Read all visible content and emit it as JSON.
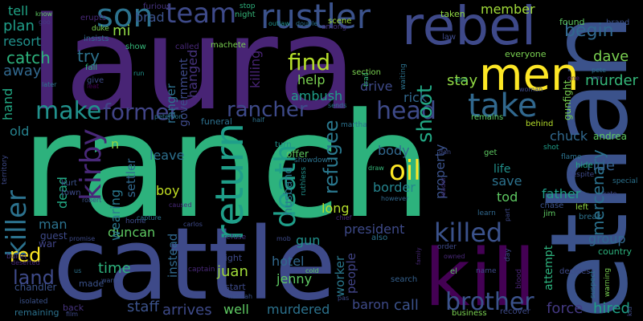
{
  "palette": {
    "dark_purple": "#440154",
    "purple": "#46337e",
    "blue": "#365c8d",
    "teal": "#277f8e",
    "green_teal": "#1fa187",
    "green": "#4ac16d",
    "light_green": "#a0da39",
    "yellow": "#fde725"
  },
  "words": [
    {
      "text": "ranch",
      "color": "#2db27d"
    },
    {
      "text": "laura",
      "color": "#482475"
    },
    {
      "text": "cattle",
      "color": "#3e4a89"
    },
    {
      "text": "ethan",
      "color": "#3b528b"
    },
    {
      "text": "kill",
      "color": "#440154"
    },
    {
      "text": "rebel",
      "color": "#3e4989"
    },
    {
      "text": "men",
      "color": "#fde725"
    },
    {
      "text": "son",
      "color": "#2c728e"
    },
    {
      "text": "team",
      "color": "#3e4a89"
    },
    {
      "text": "rustler",
      "color": "#3b528b"
    },
    {
      "text": "take",
      "color": "#31688e"
    },
    {
      "text": "return",
      "color": "#1f9e89"
    },
    {
      "text": "oil",
      "color": "#fde725"
    },
    {
      "text": "kirby",
      "color": "#482878"
    },
    {
      "text": "rancher",
      "color": "#3e4a89"
    },
    {
      "text": "former",
      "color": "#414487"
    },
    {
      "text": "make",
      "color": "#21918c"
    },
    {
      "text": "death",
      "color": "#1f9e89"
    },
    {
      "text": "killer",
      "color": "#2c728e"
    },
    {
      "text": "killed",
      "color": "#3b528b"
    },
    {
      "text": "head",
      "color": "#3e4a89"
    },
    {
      "text": "brother",
      "color": "#3b528b"
    },
    {
      "text": "find",
      "color": "#b5de2b"
    },
    {
      "text": "shoot",
      "color": "#22a884"
    },
    {
      "text": "refugee",
      "color": "#2a788e"
    },
    {
      "text": "land",
      "color": "#3e4a89"
    },
    {
      "text": "red",
      "color": "#fde725"
    },
    {
      "text": "mercenary",
      "color": "#2c728e"
    },
    {
      "text": "begin",
      "color": "#31688e"
    },
    {
      "text": "murder",
      "color": "#35b779"
    },
    {
      "text": "dave",
      "color": "#7ad151"
    },
    {
      "text": "member",
      "color": "#a0da39"
    },
    {
      "text": "stay",
      "color": "#90d743"
    },
    {
      "text": "try",
      "color": "#2c728e"
    },
    {
      "text": "catch",
      "color": "#2db27d"
    },
    {
      "text": "away",
      "color": "#31688e"
    },
    {
      "text": "plan",
      "color": "#1f9e89"
    },
    {
      "text": "resort",
      "color": "#21918c"
    },
    {
      "text": "tell",
      "color": "#20a486"
    },
    {
      "text": "brad",
      "color": "#3b528b"
    },
    {
      "text": "mi",
      "color": "#8fd744"
    },
    {
      "text": "help",
      "color": "#7ad151"
    },
    {
      "text": "ambush",
      "color": "#1f9e89"
    },
    {
      "text": "killing",
      "color": "#482475"
    },
    {
      "text": "hanged",
      "color": "#46337e"
    },
    {
      "text": "ranger",
      "color": "#2d708e"
    },
    {
      "text": "government",
      "color": "#3e4a89"
    },
    {
      "text": "property",
      "color": "#3b528b"
    },
    {
      "text": "chuck",
      "color": "#31688e"
    },
    {
      "text": "andrea",
      "color": "#5ec962"
    },
    {
      "text": "ride",
      "color": "#35608d"
    },
    {
      "text": "gunfight",
      "color": "#7ad151"
    },
    {
      "text": "body",
      "color": "#31688e"
    },
    {
      "text": "border",
      "color": "#25848e"
    },
    {
      "text": "save",
      "color": "#2c728e"
    },
    {
      "text": "life",
      "color": "#21918c"
    },
    {
      "text": "tod",
      "color": "#5ec962"
    },
    {
      "text": "father",
      "color": "#1f9e89"
    },
    {
      "text": "group",
      "color": "#31688e"
    },
    {
      "text": "hired",
      "color": "#1fa187"
    },
    {
      "text": "force",
      "color": "#443983"
    },
    {
      "text": "attempt",
      "color": "#2db27d"
    },
    {
      "text": "call",
      "color": "#3b528b"
    },
    {
      "text": "baron",
      "color": "#3e4a89"
    },
    {
      "text": "people",
      "color": "#414487"
    },
    {
      "text": "worker",
      "color": "#2a788e"
    },
    {
      "text": "president",
      "color": "#3e4a89"
    },
    {
      "text": "long",
      "color": "#b5de2b"
    },
    {
      "text": "murdered",
      "color": "#2c728e"
    },
    {
      "text": "well",
      "color": "#5ec962"
    },
    {
      "text": "arrives",
      "color": "#3e4a89"
    },
    {
      "text": "staff",
      "color": "#3b528b"
    },
    {
      "text": "time",
      "color": "#2db27d"
    },
    {
      "text": "juan",
      "color": "#a0da39"
    },
    {
      "text": "jenny",
      "color": "#5ec962"
    },
    {
      "text": "hotel",
      "color": "#31688e"
    },
    {
      "text": "husband",
      "color": "#2a788e"
    },
    {
      "text": "gun",
      "color": "#21918c"
    },
    {
      "text": "duncan",
      "color": "#5ec962"
    },
    {
      "text": "boy",
      "color": "#c2df23"
    },
    {
      "text": "leave",
      "color": "#2d708e"
    },
    {
      "text": "settler",
      "color": "#31688e"
    },
    {
      "text": "dead",
      "color": "#22a884"
    },
    {
      "text": "wearing",
      "color": "#2a788e"
    },
    {
      "text": "instead",
      "color": "#31688e"
    },
    {
      "text": "hand",
      "color": "#22a884"
    },
    {
      "text": "old",
      "color": "#26828e"
    },
    {
      "text": "man",
      "color": "#2c728e"
    },
    {
      "text": "guest",
      "color": "#3e4a89"
    },
    {
      "text": "war",
      "color": "#414487"
    },
    {
      "text": "chandler",
      "color": "#3b528b"
    },
    {
      "text": "back",
      "color": "#46337e"
    },
    {
      "text": "remaining",
      "color": "#2c728e"
    },
    {
      "text": "made",
      "color": "#3b528b"
    },
    {
      "text": "fight",
      "color": "#3e4a89"
    },
    {
      "text": "start",
      "color": "#3e4a89"
    },
    {
      "text": "n",
      "color": "#8fd744"
    },
    {
      "text": "turn",
      "color": "#21918c"
    },
    {
      "text": "funeral",
      "color": "#2d708e"
    },
    {
      "text": "offer",
      "color": "#5ec962"
    },
    {
      "text": "drive",
      "color": "#3e4a89"
    },
    {
      "text": "rick",
      "color": "#31688e"
    },
    {
      "text": "taken",
      "color": "#8fd744"
    },
    {
      "text": "everyone",
      "color": "#7ad151"
    },
    {
      "text": "section",
      "color": "#7ad151"
    },
    {
      "text": "show",
      "color": "#35b779"
    },
    {
      "text": "called",
      "color": "#482878"
    },
    {
      "text": "machete",
      "color": "#7ad151"
    },
    {
      "text": "stop",
      "color": "#2db27d"
    },
    {
      "text": "night",
      "color": "#35b779"
    },
    {
      "text": "scene",
      "color": "#a0da39"
    },
    {
      "text": "among",
      "color": "#46337e"
    },
    {
      "text": "outlaw",
      "color": "#21918c"
    },
    {
      "text": "double",
      "color": "#2c728e"
    },
    {
      "text": "erupts",
      "color": "#482878"
    },
    {
      "text": "duke",
      "color": "#7ad151"
    },
    {
      "text": "insists",
      "color": "#31688e"
    },
    {
      "text": "furious",
      "color": "#46337e"
    },
    {
      "text": "know",
      "color": "#5ec962"
    },
    {
      "text": "goo",
      "color": "#443983"
    },
    {
      "text": "fall",
      "color": "#2db27d"
    },
    {
      "text": "give",
      "color": "#3e4a89"
    },
    {
      "text": "leat",
      "color": "#440154"
    },
    {
      "text": "later",
      "color": "#2a788e"
    },
    {
      "text": "run",
      "color": "#21918c"
    },
    {
      "text": "peterson",
      "color": "#2c728e"
    },
    {
      "text": "half",
      "color": "#2c728e"
    },
    {
      "text": "martha",
      "color": "#2c728e"
    },
    {
      "text": "sends",
      "color": "#2a788e"
    },
    {
      "text": "remains",
      "color": "#5ec962"
    },
    {
      "text": "behind",
      "color": "#b5de2b"
    },
    {
      "text": "woman",
      "color": "#3e4a89"
    },
    {
      "text": "end",
      "color": "#35b779"
    },
    {
      "text": "waiting",
      "color": "#2c728e"
    },
    {
      "text": "trail",
      "color": "#35b779"
    },
    {
      "text": "showdown",
      "color": "#2c728e"
    },
    {
      "text": "law",
      "color": "#3e4a89"
    },
    {
      "text": "found",
      "color": "#5ec962"
    },
    {
      "text": "brand",
      "color": "#3b528b"
    },
    {
      "text": "pete",
      "color": "#2c728e"
    },
    {
      "text": "way",
      "color": "#3e4a89"
    },
    {
      "text": "one",
      "color": "#482475"
    },
    {
      "text": "shot",
      "color": "#1f9e89"
    },
    {
      "text": "flame",
      "color": "#2c728e"
    },
    {
      "text": "hide",
      "color": "#22a884"
    },
    {
      "text": "despite",
      "color": "#3e4a89"
    },
    {
      "text": "special",
      "color": "#2c728e"
    },
    {
      "text": "kate",
      "color": "#3e4a89"
    },
    {
      "text": "chase",
      "color": "#3b528b"
    },
    {
      "text": "jim",
      "color": "#5ec962"
    },
    {
      "text": "left",
      "color": "#8fd744"
    },
    {
      "text": "break",
      "color": "#2c728e"
    },
    {
      "text": "country",
      "color": "#2db27d"
    },
    {
      "text": "decides",
      "color": "#3e4a89"
    },
    {
      "text": "warning",
      "color": "#7ad151"
    },
    {
      "text": "suspect",
      "color": "#2c728e"
    },
    {
      "text": "recover",
      "color": "#3e4a89"
    },
    {
      "text": "business",
      "color": "#7ad151"
    },
    {
      "text": "pas",
      "color": "#3e4a89"
    },
    {
      "text": "search",
      "color": "#35608d"
    },
    {
      "text": "also",
      "color": "#2c728e"
    },
    {
      "text": "chief",
      "color": "#482878"
    },
    {
      "text": "mob",
      "color": "#3e4a89"
    },
    {
      "text": "refuse",
      "color": "#46337e"
    },
    {
      "text": "cold",
      "color": "#5ec962"
    },
    {
      "text": "hannah",
      "color": "#3b528b"
    },
    {
      "text": "captain",
      "color": "#482878"
    },
    {
      "text": "carlos",
      "color": "#3e4a89"
    },
    {
      "text": "home",
      "color": "#3e4a89"
    },
    {
      "text": "capture",
      "color": "#2c728e"
    },
    {
      "text": "caused",
      "color": "#482878"
    },
    {
      "text": "ruthless",
      "color": "#21918c"
    },
    {
      "text": "draw",
      "color": "#35b779"
    },
    {
      "text": "dan",
      "color": "#3e4a89"
    },
    {
      "text": "get",
      "color": "#5ec962"
    },
    {
      "text": "learn",
      "color": "#31688e"
    },
    {
      "text": "part",
      "color": "#3e4a89"
    },
    {
      "text": "leader",
      "color": "#46337e"
    },
    {
      "text": "however",
      "color": "#31688e"
    },
    {
      "text": "kurt",
      "color": "#3b528b"
    },
    {
      "text": "town",
      "color": "#3e4a89"
    },
    {
      "text": "robert",
      "color": "#3b528b"
    },
    {
      "text": "promise",
      "color": "#3e4a89"
    },
    {
      "text": "warns",
      "color": "#3b528b"
    },
    {
      "text": "bullet",
      "color": "#46337e"
    },
    {
      "text": "deserted",
      "color": "#482878"
    },
    {
      "text": "isolated",
      "color": "#3b528b"
    },
    {
      "text": "film",
      "color": "#3e4a89"
    },
    {
      "text": "us",
      "color": "#2c728e"
    },
    {
      "text": "territory",
      "color": "#3e4a89"
    },
    {
      "text": "family",
      "color": "#482878"
    },
    {
      "text": "order",
      "color": "#3e4a89"
    },
    {
      "text": "owned",
      "color": "#482878"
    },
    {
      "text": "el",
      "color": "#5ec962"
    },
    {
      "text": "name",
      "color": "#3e4a89"
    },
    {
      "text": "day",
      "color": "#3e4a89"
    },
    {
      "text": "blood",
      "color": "#482475"
    },
    {
      "text": "kid",
      "color": "#3e4a89"
    }
  ]
}
